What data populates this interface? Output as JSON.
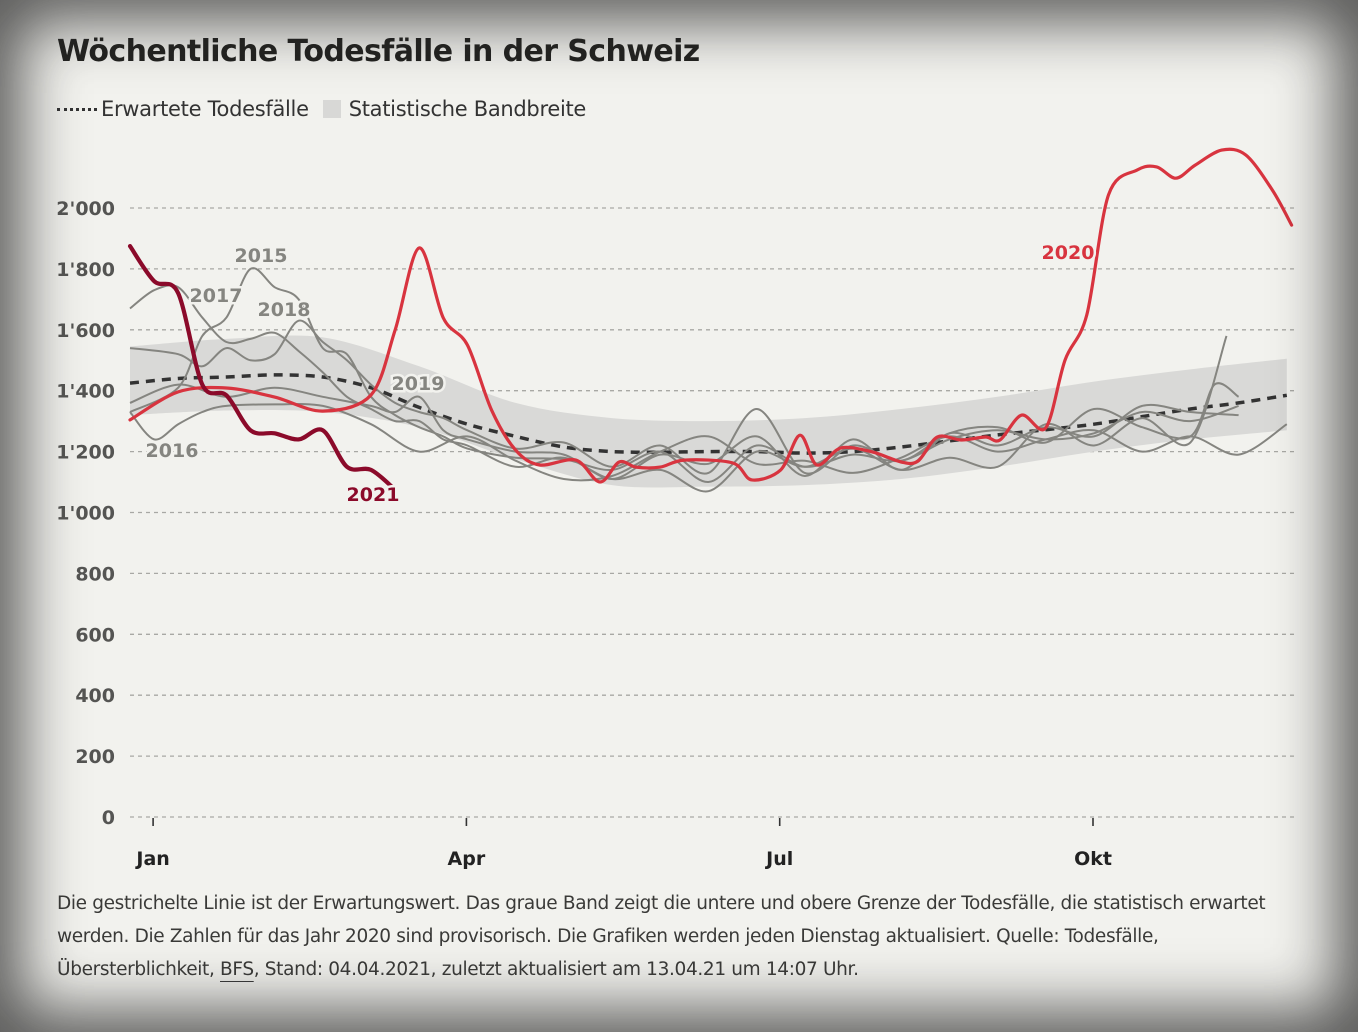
{
  "title": "Wöchentliche Todesfälle in der Schweiz",
  "legend": {
    "expected_label": "Erwartete Todesfälle",
    "band_label": "Statistische Bandbreite"
  },
  "caption": {
    "part1": "Die gestrichelte Linie ist der Erwartungswert. Das graue Band zeigt die untere und obere Grenze der Todesfälle, die statistisch erwartet werden. Die Zahlen für das Jahr 2020 sind provisorisch. Die Grafiken werden jeden Dienstag aktualisiert. Quelle: Todesfälle, Übersterblichkeit, ",
    "source_link": "BFS",
    "part2": ", Stand: 04.04.2021, zuletzt aktualisiert am 13.04.21 um 14:07 Uhr."
  },
  "colors": {
    "background": "#f2f2ee",
    "band": "#d9d9d7",
    "expected": "#333333",
    "past_years": "#858580",
    "y2020": "#d8343f",
    "y2021": "#8b0a2a",
    "grid": "#a8a8a4"
  },
  "chart_data": {
    "type": "line",
    "title": "Wöchentliche Todesfälle in der Schweiz",
    "xlabel": "",
    "ylabel": "",
    "x_unit": "week of year",
    "xlim": [
      0,
      48
    ],
    "ylim": [
      0,
      2000
    ],
    "grid": true,
    "legend_position": "top-left",
    "yticks": [
      0,
      200,
      400,
      600,
      800,
      1000,
      1200,
      1400,
      1600,
      1800,
      2000
    ],
    "ytick_labels": [
      "0",
      "200",
      "400",
      "600",
      "800",
      "1'000",
      "1'200",
      "1'400",
      "1'600",
      "1'800",
      "2'000"
    ],
    "xticks": [
      1,
      14,
      27,
      40
    ],
    "xtick_labels": [
      "Jan",
      "Apr",
      "Jul",
      "Okt"
    ],
    "band": {
      "name": "Statistische Bandbreite",
      "x": [
        0,
        4,
        8,
        12,
        16,
        20,
        24,
        28,
        32,
        36,
        40,
        44,
        48
      ],
      "lower": [
        1320,
        1335,
        1330,
        1280,
        1175,
        1090,
        1085,
        1090,
        1110,
        1150,
        1200,
        1240,
        1270
      ],
      "upper": [
        1545,
        1570,
        1575,
        1480,
        1360,
        1310,
        1300,
        1310,
        1340,
        1380,
        1430,
        1470,
        1505
      ]
    },
    "expected": {
      "name": "Erwartete Todesfälle",
      "x": [
        0,
        2,
        4,
        6,
        8,
        10,
        12,
        14,
        16,
        18,
        20,
        22,
        24,
        26,
        28,
        30,
        32,
        34,
        36,
        38,
        40,
        42,
        44,
        46,
        48
      ],
      "values": [
        1425,
        1440,
        1445,
        1452,
        1445,
        1410,
        1345,
        1290,
        1250,
        1215,
        1200,
        1198,
        1200,
        1200,
        1195,
        1200,
        1215,
        1235,
        1255,
        1272,
        1290,
        1315,
        1340,
        1360,
        1385
      ]
    },
    "series": [
      {
        "name": "2020",
        "x": [
          0,
          2,
          4,
          6,
          8,
          10,
          11,
          12,
          13,
          14,
          15,
          16,
          17,
          18.5,
          19.5,
          20.3,
          21,
          22,
          23,
          25,
          25.8,
          27,
          27.8,
          28.5,
          29.5,
          30.8,
          32,
          32.7,
          33.5,
          34.5,
          35.5,
          36.1,
          37,
          38,
          38.8,
          39.7,
          40.6,
          41.8,
          42.6,
          43.4,
          44.2,
          45.3,
          46.3,
          47.4,
          48.2
        ],
        "values": [
          1304,
          1396,
          1409,
          1379,
          1333,
          1386,
          1599,
          1869,
          1639,
          1550,
          1337,
          1205,
          1156,
          1172,
          1100,
          1166,
          1149,
          1149,
          1172,
          1163,
          1107,
          1140,
          1254,
          1156,
          1212,
          1199,
          1166,
          1169,
          1248,
          1238,
          1248,
          1238,
          1320,
          1278,
          1501,
          1649,
          2043,
          2125,
          2135,
          2098,
          2141,
          2190,
          2174,
          2059,
          1944
        ]
      },
      {
        "name": "2021",
        "x": [
          0,
          1,
          2,
          3,
          4,
          5,
          6,
          7,
          8,
          9,
          10,
          11
        ],
        "values": [
          1875,
          1760,
          1720,
          1420,
          1385,
          1270,
          1260,
          1240,
          1270,
          1150,
          1140,
          1075
        ]
      },
      {
        "name": "2015",
        "x": [
          0,
          2,
          3,
          4,
          5,
          6,
          7,
          8,
          9,
          10,
          11,
          12,
          13,
          14,
          16,
          18,
          20,
          22,
          24,
          26,
          28,
          30,
          32,
          34,
          36,
          38,
          40,
          42,
          44,
          46
        ],
        "values": [
          1330,
          1410,
          1580,
          1640,
          1800,
          1740,
          1700,
          1540,
          1520,
          1380,
          1320,
          1280,
          1250,
          1210,
          1180,
          1175,
          1140,
          1200,
          1100,
          1220,
          1150,
          1190,
          1170,
          1240,
          1270,
          1240,
          1260,
          1330,
          1300,
          1350
        ]
      },
      {
        "name": "2016",
        "x": [
          0,
          1,
          2,
          3,
          4,
          6,
          8,
          10,
          12,
          14,
          16,
          18,
          20,
          22,
          24,
          26,
          28,
          30,
          32,
          34,
          36,
          38,
          40,
          42,
          44,
          46,
          48
        ],
        "values": [
          1330,
          1240,
          1290,
          1330,
          1350,
          1355,
          1350,
          1290,
          1200,
          1250,
          1170,
          1110,
          1120,
          1200,
          1250,
          1160,
          1170,
          1130,
          1180,
          1250,
          1200,
          1240,
          1270,
          1200,
          1250,
          1190,
          1290
        ]
      },
      {
        "name": "2017",
        "x": [
          0,
          1,
          2,
          3,
          4,
          5,
          6,
          7,
          8,
          9,
          10,
          11,
          12,
          13,
          14,
          16,
          18,
          20,
          22,
          24,
          26,
          28,
          30,
          32,
          34,
          36,
          38,
          40,
          42,
          44,
          45.5
        ],
        "values": [
          1670,
          1730,
          1740,
          1640,
          1560,
          1570,
          1590,
          1530,
          1460,
          1380,
          1340,
          1300,
          1300,
          1240,
          1220,
          1150,
          1180,
          1110,
          1140,
          1070,
          1200,
          1150,
          1210,
          1140,
          1180,
          1150,
          1290,
          1220,
          1310,
          1230,
          1580
        ]
      },
      {
        "name": "2018",
        "x": [
          0,
          2,
          3,
          4,
          5,
          6,
          7,
          8,
          9,
          10,
          11,
          12,
          13,
          14,
          16,
          18,
          20,
          22,
          24,
          26,
          28,
          30,
          32,
          34,
          36,
          38,
          40,
          42,
          44,
          45,
          46
        ],
        "values": [
          1540,
          1520,
          1480,
          1540,
          1500,
          1520,
          1630,
          1560,
          1500,
          1420,
          1360,
          1330,
          1310,
          1270,
          1210,
          1230,
          1150,
          1220,
          1130,
          1340,
          1130,
          1220,
          1170,
          1260,
          1280,
          1230,
          1340,
          1280,
          1250,
          1420,
          1380
        ]
      },
      {
        "name": "2019",
        "x": [
          0,
          2,
          4,
          6,
          8,
          10,
          11,
          12,
          13,
          14,
          16,
          18,
          20,
          22,
          24,
          26,
          28,
          30,
          32,
          34,
          36,
          38,
          40,
          42,
          44,
          46
        ],
        "values": [
          1360,
          1420,
          1380,
          1410,
          1380,
          1350,
          1330,
          1380,
          1270,
          1240,
          1200,
          1190,
          1110,
          1190,
          1160,
          1250,
          1120,
          1240,
          1140,
          1260,
          1220,
          1280,
          1250,
          1350,
          1330,
          1320
        ]
      }
    ],
    "annotations": [
      {
        "text": "2015",
        "series": "2015"
      },
      {
        "text": "2016",
        "series": "2016"
      },
      {
        "text": "2017",
        "series": "2017"
      },
      {
        "text": "2018",
        "series": "2018"
      },
      {
        "text": "2019",
        "series": "2019"
      },
      {
        "text": "2020",
        "series": "2020"
      },
      {
        "text": "2021",
        "series": "2021"
      }
    ]
  }
}
